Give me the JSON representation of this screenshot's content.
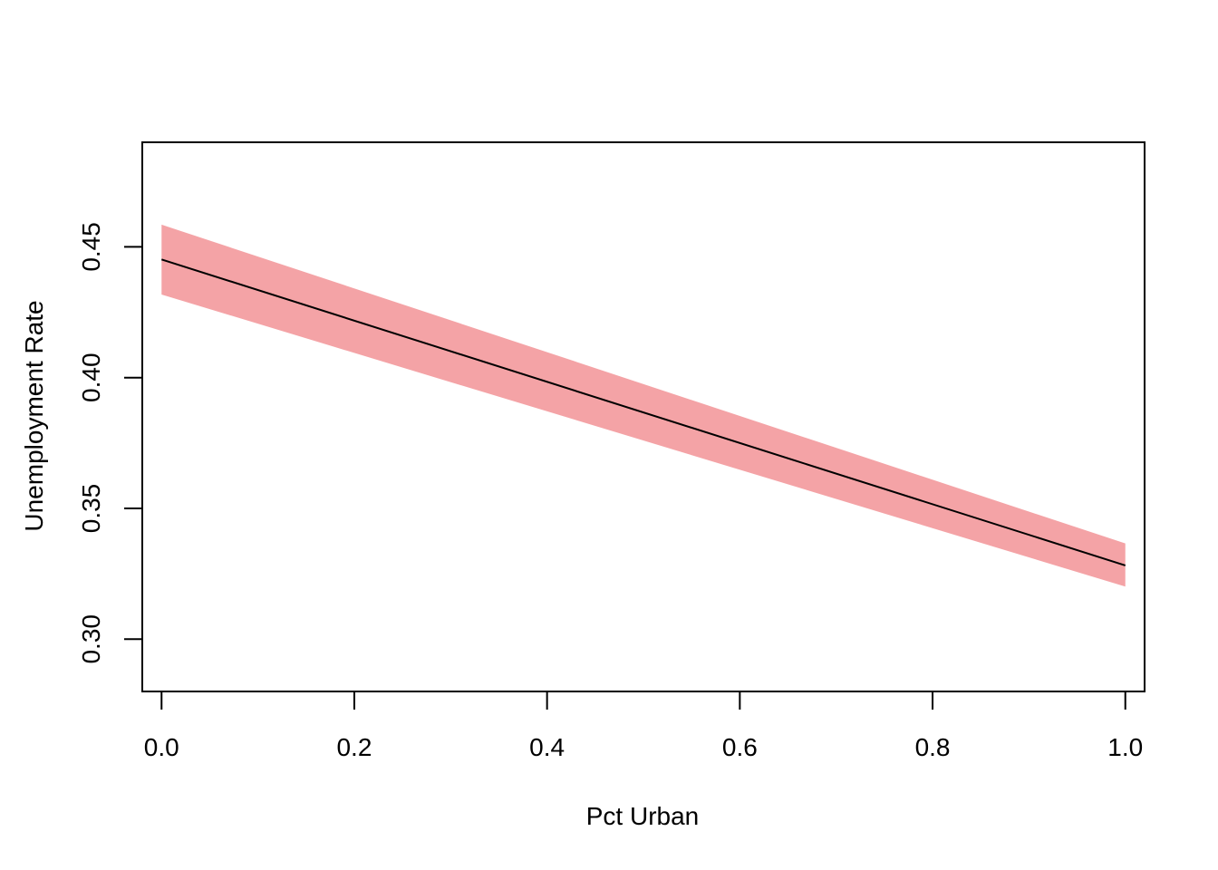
{
  "chart_data": {
    "type": "line",
    "title": "",
    "xlabel": "Pct Urban",
    "ylabel": "Unemployment Rate",
    "xlim": [
      -0.02,
      1.02
    ],
    "ylim": [
      0.28,
      0.49
    ],
    "x_ticks": [
      0.0,
      0.2,
      0.4,
      0.6,
      0.8,
      1.0
    ],
    "x_tick_labels": [
      "0.0",
      "0.2",
      "0.4",
      "0.6",
      "0.8",
      "1.0"
    ],
    "y_ticks": [
      0.3,
      0.35,
      0.4,
      0.45
    ],
    "y_tick_labels": [
      "0.30",
      "0.35",
      "0.40",
      "0.45"
    ],
    "grid": false,
    "legend": "none",
    "series": [
      {
        "kind": "line",
        "color": "#000000",
        "x": [
          0.0,
          1.0
        ],
        "y": [
          0.4452,
          0.3282
        ]
      }
    ],
    "band": {
      "kind": "confidence-interval",
      "color": "#F4A3A6",
      "x": [
        0.0,
        1.0
      ],
      "lower": [
        0.4318,
        0.3201
      ],
      "upper": [
        0.4585,
        0.3366
      ]
    }
  }
}
